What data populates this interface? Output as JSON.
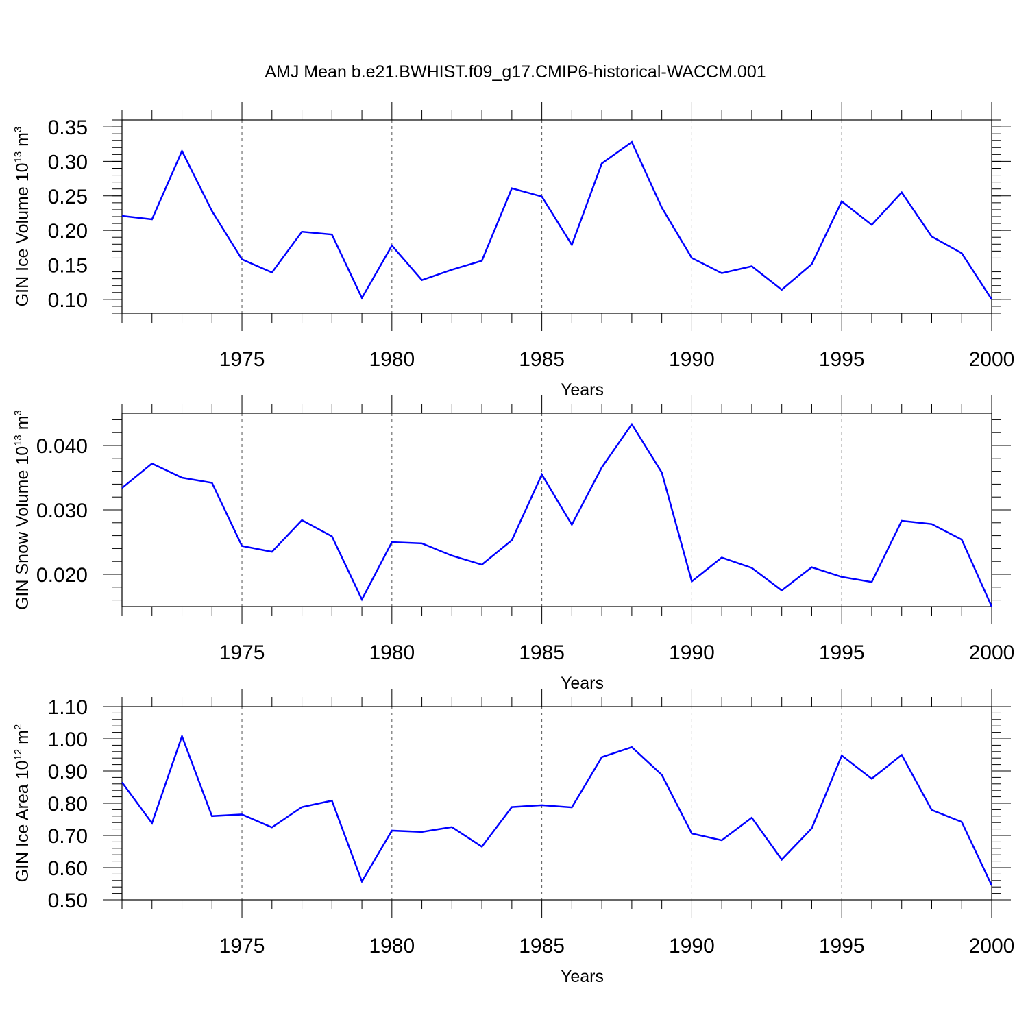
{
  "chart_data": [
    {
      "type": "line",
      "title": "AMJ Mean b.e21.BWHIST.f09_g17.CMIP6-historical-WACCM.001",
      "ylabel": {
        "main": "GIN Ice Volume 10",
        "exp": "13",
        "unit": " m",
        "unit_exp": "3"
      },
      "xlabel": "Years",
      "xlim": [
        1971,
        2000
      ],
      "ylim": [
        0.08,
        0.36
      ],
      "yticks": [
        0.1,
        0.15,
        0.2,
        0.25,
        0.3,
        0.35
      ],
      "ytick_labels": [
        "0.10",
        "0.15",
        "0.20",
        "0.25",
        "0.30",
        "0.35"
      ],
      "yminor_step": 0.01,
      "xticks": [
        1975,
        1980,
        1985,
        1990,
        1995,
        2000
      ],
      "xtick_labels": [
        "1975",
        "1980",
        "1985",
        "1990",
        "1995",
        "2000"
      ],
      "grid": "vertical dashed at major x ticks",
      "series": [
        {
          "name": "GIN Ice Volume",
          "color": "#0000ff",
          "x": [
            1971,
            1972,
            1973,
            1974,
            1975,
            1976,
            1977,
            1978,
            1979,
            1980,
            1981,
            1982,
            1983,
            1984,
            1985,
            1986,
            1987,
            1988,
            1989,
            1990,
            1991,
            1992,
            1993,
            1994,
            1995,
            1996,
            1997,
            1998,
            1999,
            2000
          ],
          "values": [
            0.221,
            0.216,
            0.315,
            0.228,
            0.158,
            0.139,
            0.198,
            0.194,
            0.102,
            0.178,
            0.128,
            0.143,
            0.156,
            0.261,
            0.249,
            0.179,
            0.297,
            0.328,
            0.233,
            0.16,
            0.138,
            0.148,
            0.114,
            0.151,
            0.242,
            0.208,
            0.255,
            0.191,
            0.167,
            0.1
          ]
        }
      ]
    },
    {
      "type": "line",
      "title": "",
      "ylabel": {
        "main": "GIN Snow Volume 10",
        "exp": "13",
        "unit": " m",
        "unit_exp": "3"
      },
      "xlabel": "Years",
      "xlim": [
        1971,
        2000
      ],
      "ylim": [
        0.015,
        0.045
      ],
      "yticks": [
        0.02,
        0.03,
        0.04
      ],
      "ytick_labels": [
        "0.020",
        "0.030",
        "0.040"
      ],
      "yminor_step": 0.002,
      "xticks": [
        1975,
        1980,
        1985,
        1990,
        1995,
        2000
      ],
      "xtick_labels": [
        "1975",
        "1980",
        "1985",
        "1990",
        "1995",
        "2000"
      ],
      "grid": "vertical dashed at major x ticks",
      "series": [
        {
          "name": "GIN Snow Volume",
          "color": "#0000ff",
          "x": [
            1971,
            1972,
            1973,
            1974,
            1975,
            1976,
            1977,
            1978,
            1979,
            1980,
            1981,
            1982,
            1983,
            1984,
            1985,
            1986,
            1987,
            1988,
            1989,
            1990,
            1991,
            1992,
            1993,
            1994,
            1995,
            1996,
            1997,
            1998,
            1999,
            2000
          ],
          "values": [
            0.0334,
            0.0372,
            0.035,
            0.0342,
            0.0244,
            0.0235,
            0.0284,
            0.0259,
            0.0161,
            0.025,
            0.0248,
            0.0229,
            0.0215,
            0.0253,
            0.0355,
            0.0277,
            0.0366,
            0.0433,
            0.0358,
            0.0189,
            0.0226,
            0.021,
            0.0175,
            0.0211,
            0.0196,
            0.0188,
            0.0283,
            0.0278,
            0.0254,
            0.015
          ]
        }
      ]
    },
    {
      "type": "line",
      "title": "",
      "ylabel": {
        "main": "GIN Ice Area 10",
        "exp": "12",
        "unit": " m",
        "unit_exp": "2"
      },
      "xlabel": "Years",
      "xlim": [
        1971,
        2000
      ],
      "ylim": [
        0.5,
        1.1
      ],
      "yticks": [
        0.5,
        0.6,
        0.7,
        0.8,
        0.9,
        1.0,
        1.1
      ],
      "ytick_labels": [
        "0.50",
        "0.60",
        "0.70",
        "0.80",
        "0.90",
        "1.00",
        "1.10"
      ],
      "yminor_step": 0.02,
      "xticks": [
        1975,
        1980,
        1985,
        1990,
        1995,
        2000
      ],
      "xtick_labels": [
        "1975",
        "1980",
        "1985",
        "1990",
        "1995",
        "2000"
      ],
      "grid": "vertical dashed at major x ticks",
      "series": [
        {
          "name": "GIN Ice Area",
          "color": "#0000ff",
          "x": [
            1971,
            1972,
            1973,
            1974,
            1975,
            1976,
            1977,
            1978,
            1979,
            1980,
            1981,
            1982,
            1983,
            1984,
            1985,
            1986,
            1987,
            1988,
            1989,
            1990,
            1991,
            1992,
            1993,
            1994,
            1995,
            1996,
            1997,
            1998,
            1999,
            2000
          ],
          "values": [
            0.865,
            0.738,
            1.008,
            0.76,
            0.765,
            0.725,
            0.788,
            0.808,
            0.557,
            0.715,
            0.711,
            0.726,
            0.665,
            0.788,
            0.794,
            0.787,
            0.943,
            0.974,
            0.888,
            0.706,
            0.685,
            0.755,
            0.625,
            0.722,
            0.948,
            0.876,
            0.95,
            0.779,
            0.742,
            0.545
          ]
        }
      ]
    }
  ]
}
